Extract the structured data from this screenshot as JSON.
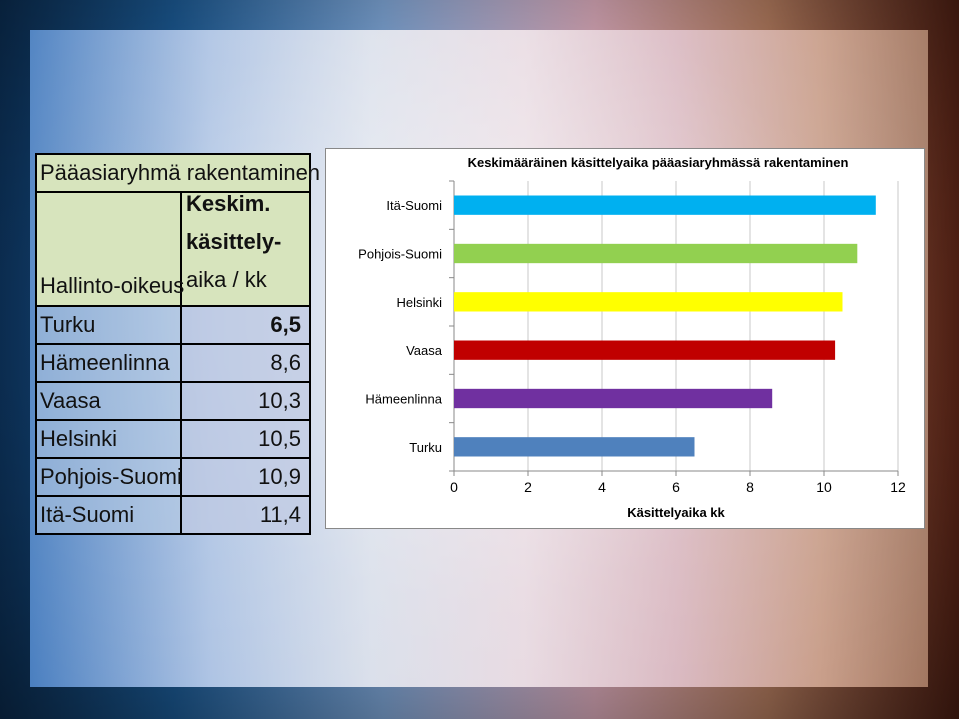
{
  "table": {
    "title": "Pääasiaryhmä rakentaminen",
    "header_col1": "Hallinto-oikeus",
    "header_col2_lines": [
      "Keskim.",
      "käsittely-",
      "aika / kk"
    ],
    "rows": [
      {
        "name": "Turku",
        "value": "6,5",
        "bold": true
      },
      {
        "name": "Hämeenlinna",
        "value": "8,6",
        "bold": false
      },
      {
        "name": "Vaasa",
        "value": "10,3",
        "bold": false
      },
      {
        "name": "Helsinki",
        "value": "10,5",
        "bold": false
      },
      {
        "name": "Pohjois-Suomi",
        "value": "10,9",
        "bold": false
      },
      {
        "name": "Itä-Suomi",
        "value": "11,4",
        "bold": false
      }
    ]
  },
  "chart_data": {
    "type": "bar",
    "orientation": "horizontal",
    "title": "Keskimääräinen käsittelyaika pääasiaryhmässä rakentaminen",
    "xlabel": "Käsittelyaika kk",
    "ylabel": "",
    "xlim": [
      0,
      12
    ],
    "xticks": [
      0,
      2,
      4,
      6,
      8,
      10,
      12
    ],
    "categories": [
      "Itä-Suomi",
      "Pohjois-Suomi",
      "Helsinki",
      "Vaasa",
      "Hämeenlinna",
      "Turku"
    ],
    "values": [
      11.4,
      10.9,
      10.5,
      10.3,
      8.6,
      6.5
    ],
    "colors": [
      "#00b0f0",
      "#92d050",
      "#ffff00",
      "#c00000",
      "#7030a0",
      "#4f81bd"
    ],
    "grid": true,
    "legend": "none"
  }
}
